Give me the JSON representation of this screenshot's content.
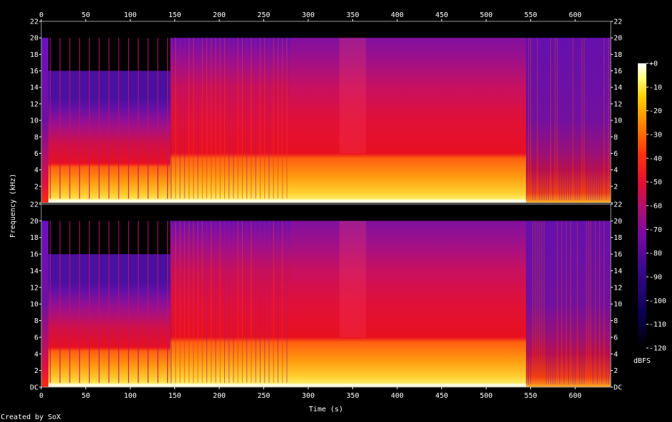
{
  "chart_data": {
    "type": "heatmap",
    "title": "",
    "xlabel": "Time (s)",
    "ylabel": "Frequency (kHz)",
    "xlim": [
      0,
      640
    ],
    "ylim": [
      0,
      22
    ],
    "x_ticks": [
      0,
      50,
      100,
      150,
      200,
      250,
      300,
      350,
      400,
      450,
      500,
      550,
      600
    ],
    "y_ticks_labels": [
      "DC",
      "2",
      "4",
      "6",
      "8",
      "10",
      "12",
      "14",
      "16",
      "18",
      "20",
      "22"
    ],
    "channels": 2,
    "colorbar": {
      "label": "dBFS",
      "range": [
        -120,
        0
      ],
      "ticks": [
        "+0",
        "-10",
        "-20",
        "-30",
        "-40",
        "-50",
        "-60",
        "-70",
        "-80",
        "-90",
        "-100",
        "-110",
        "-120"
      ]
    },
    "segments": [
      {
        "start": 0,
        "end": 8,
        "cutoff_khz": 20,
        "level": "bright"
      },
      {
        "start": 8,
        "end": 145,
        "cutoff_khz": 16,
        "level": "moderate"
      },
      {
        "start": 145,
        "end": 280,
        "cutoff_khz": 20,
        "level": "loud"
      },
      {
        "start": 280,
        "end": 545,
        "cutoff_khz": 20,
        "level": "loud"
      },
      {
        "start": 545,
        "end": 640,
        "cutoff_khz": 20,
        "level": "quiet"
      }
    ],
    "footer": "Created by SoX"
  }
}
